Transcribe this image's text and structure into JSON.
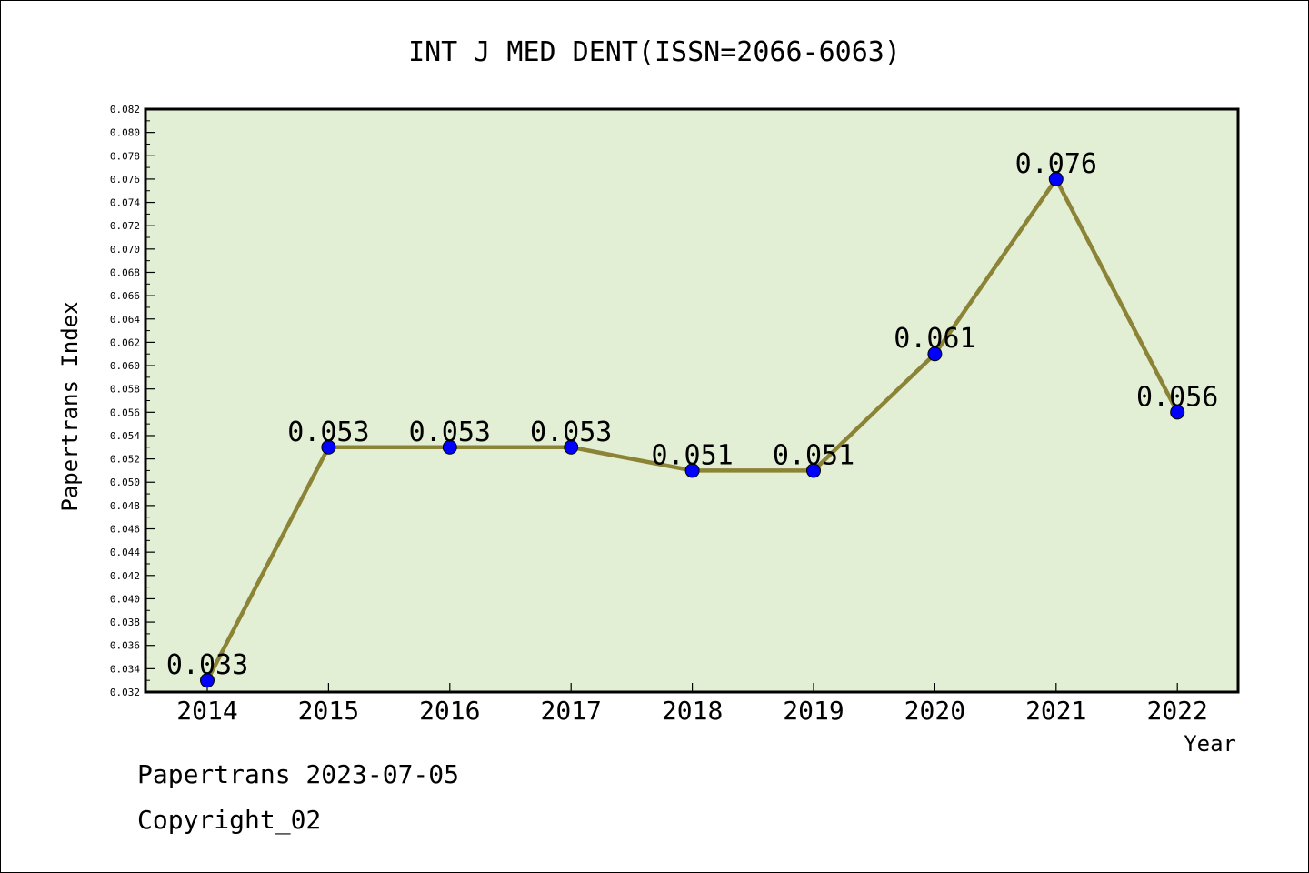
{
  "chart_data": {
    "type": "line",
    "title": "INT J MED DENT(ISSN=2066-6063)",
    "xlabel": "Year",
    "ylabel": "Papertrans Index",
    "categories": [
      "2014",
      "2015",
      "2016",
      "2017",
      "2018",
      "2019",
      "2020",
      "2021",
      "2022"
    ],
    "series": [
      {
        "values": [
          0.033,
          0.053,
          0.053,
          0.053,
          0.051,
          0.051,
          0.061,
          0.076,
          0.056
        ]
      }
    ],
    "data_labels": [
      "0.033",
      "0.053",
      "0.053",
      "0.053",
      "0.051",
      "0.051",
      "0.061",
      "0.076",
      "0.056"
    ],
    "ylim": [
      0.032,
      0.082
    ],
    "ytick_step": 0.002,
    "ytick_labels": [
      "0.032",
      "0.034",
      "0.036",
      "0.038",
      "0.040",
      "0.042",
      "0.044",
      "0.046",
      "0.048",
      "0.050",
      "0.052",
      "0.054",
      "0.056",
      "0.058",
      "0.060",
      "0.062",
      "0.064",
      "0.066",
      "0.068",
      "0.070",
      "0.072",
      "0.074",
      "0.076",
      "0.078",
      "0.080",
      "0.082"
    ],
    "grid": false,
    "colors": {
      "plot_background": "#e2efd4",
      "line": "#8b8336",
      "marker": "#0000ff"
    }
  },
  "footer": {
    "line1": "Papertrans 2023-07-05",
    "line2": "Copyright_02"
  }
}
